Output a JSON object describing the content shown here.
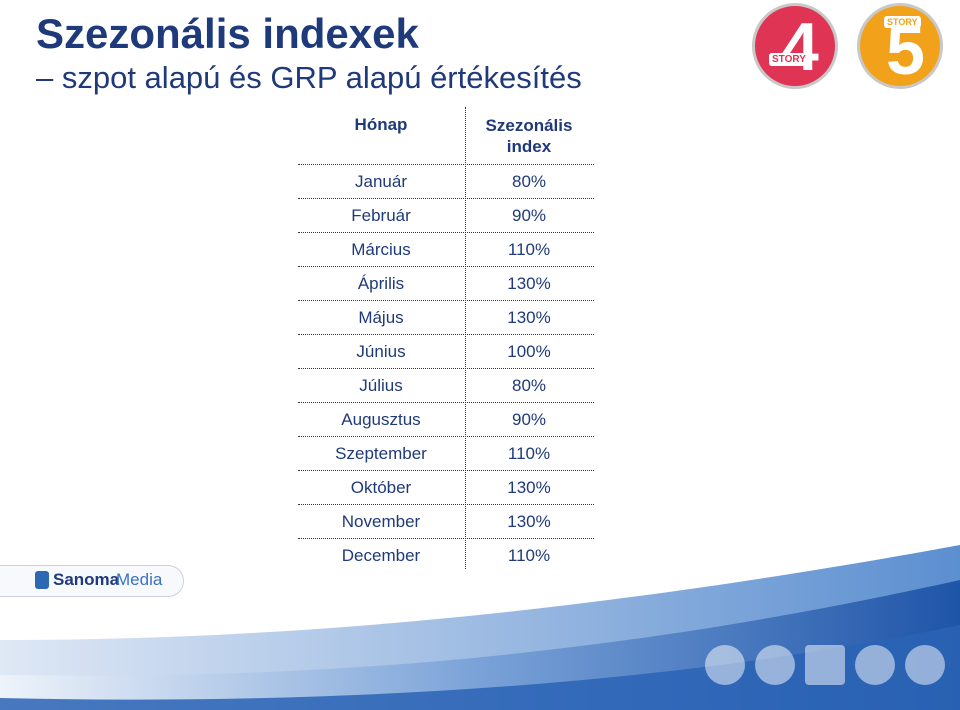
{
  "title": "Szezonális indexek",
  "subtitle": "– szpot alapú és GRP alapú értékesítés",
  "table": {
    "col_month": "Hónap",
    "col_index": "Szezonális index",
    "rows": [
      {
        "month": "Január",
        "index": "80%"
      },
      {
        "month": "Február",
        "index": "90%"
      },
      {
        "month": "Március",
        "index": "110%"
      },
      {
        "month": "Április",
        "index": "130%"
      },
      {
        "month": "Május",
        "index": "130%"
      },
      {
        "month": "Június",
        "index": "100%"
      },
      {
        "month": "Július",
        "index": "80%"
      },
      {
        "month": "Augusztus",
        "index": "90%"
      },
      {
        "month": "Szeptember",
        "index": "110%"
      },
      {
        "month": "Október",
        "index": "130%"
      },
      {
        "month": "November",
        "index": "130%"
      },
      {
        "month": "December",
        "index": "110%"
      }
    ]
  },
  "logos": {
    "channel4_number": "4",
    "channel4_label": "STORY",
    "channel5_number": "5",
    "channel5_label": "STORY",
    "brand_part1": "Sanoma",
    "brand_part2": "Media"
  },
  "colors": {
    "title": "#1f3a7a",
    "channel4": "#e03454",
    "channel5": "#f2a21a",
    "wave": "#2a63b5"
  },
  "media_icons": [
    "print-icon",
    "cd-icon",
    "tv-icon",
    "people-icon",
    "mobile-icon"
  ]
}
